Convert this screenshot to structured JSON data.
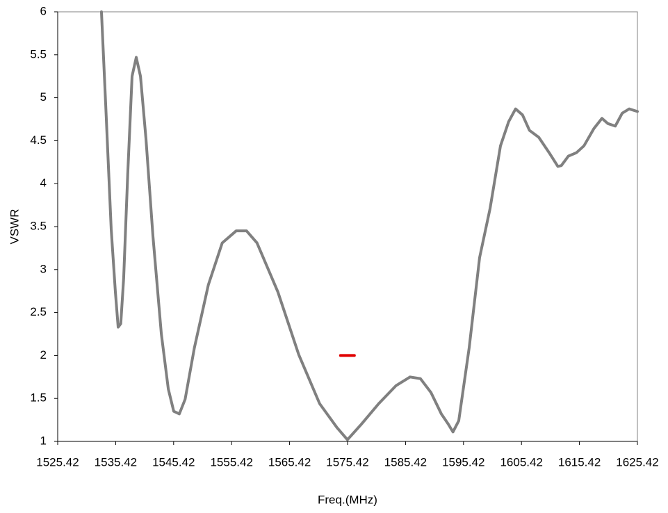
{
  "chart_data": {
    "type": "line",
    "x_label": "Freq.(MHz)",
    "y_label": "VSWR",
    "xlim": [
      1525.42,
      1625.42
    ],
    "xticks": [
      1525.42,
      1535.42,
      1545.42,
      1555.42,
      1565.42,
      1575.42,
      1585.42,
      1595.42,
      1605.42,
      1615.42,
      1625.42
    ],
    "ylim": [
      1,
      6
    ],
    "yticks": [
      1,
      1.5,
      2,
      2.5,
      3,
      3.5,
      4,
      4.5,
      5,
      5.5,
      6
    ],
    "series": [
      {
        "color": "#808080",
        "x": [
          1532.97,
          1533.7,
          1534.65,
          1535.37,
          1535.85,
          1536.3,
          1536.8,
          1537.5,
          1538.25,
          1538.97,
          1539.7,
          1540.65,
          1541.85,
          1543.3,
          1544.5,
          1545.44,
          1546.4,
          1547.4,
          1549.0,
          1551.4,
          1553.8,
          1556.2,
          1558.0,
          1559.8,
          1563.4,
          1567.0,
          1570.6,
          1573.6,
          1575.4,
          1577.8,
          1580.8,
          1583.8,
          1586.2,
          1588.0,
          1589.8,
          1591.6,
          1592.8,
          1593.6,
          1594.6,
          1596.4,
          1598.2,
          1600.0,
          1601.8,
          1603.2,
          1604.4,
          1605.6,
          1606.8,
          1608.4,
          1610.2,
          1611.7,
          1612.3,
          1613.5,
          1614.9,
          1616.2,
          1617.9,
          1619.3,
          1620.3,
          1621.6,
          1622.8,
          1624.0,
          1625.42
        ],
        "values": [
          6,
          4.92,
          3.47,
          2.74,
          2.33,
          2.37,
          2.9,
          4.11,
          5.25,
          5.47,
          5.25,
          4.52,
          3.39,
          2.25,
          1.61,
          1.35,
          1.32,
          1.49,
          2.09,
          2.82,
          3.31,
          3.45,
          3.45,
          3.31,
          2.74,
          2.01,
          1.44,
          1.16,
          1.02,
          1.2,
          1.44,
          1.65,
          1.75,
          1.73,
          1.57,
          1.32,
          1.2,
          1.11,
          1.24,
          2.09,
          3.14,
          3.71,
          4.44,
          4.72,
          4.87,
          4.8,
          4.62,
          4.54,
          4.36,
          4.2,
          4.21,
          4.32,
          4.36,
          4.44,
          4.64,
          4.76,
          4.7,
          4.67,
          4.82,
          4.87,
          4.84
        ]
      },
      {
        "color": "#e00000",
        "x": [
          1574.2,
          1576.6
        ],
        "values": [
          2,
          2
        ]
      }
    ]
  }
}
